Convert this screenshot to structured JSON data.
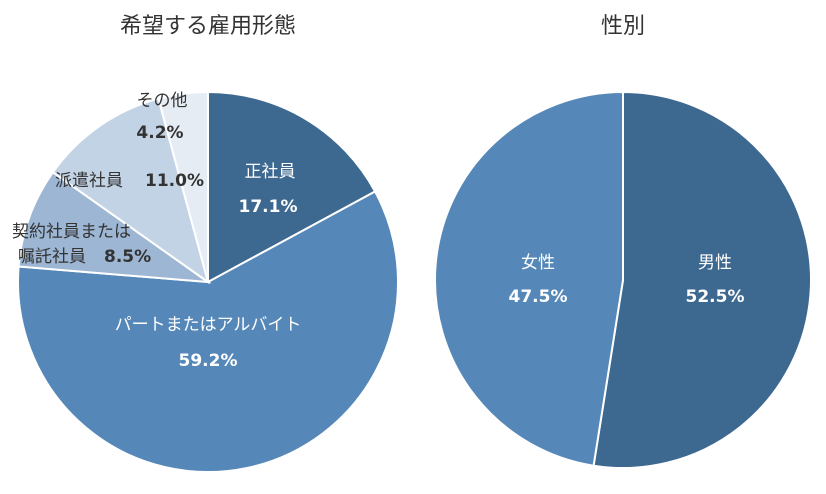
{
  "chart_data": [
    {
      "type": "pie",
      "title": "希望する雇用形態",
      "categories": [
        "正社員",
        "パートまたはアルバイト",
        "契約社員または嘱託社員",
        "派遣社員",
        "その他"
      ],
      "values": [
        17.1,
        59.2,
        8.5,
        11.0,
        4.2
      ],
      "labels": [
        "17.1%",
        "59.2%",
        "8.5%",
        "11.0%",
        "4.2%"
      ],
      "colors": [
        "#3d6890",
        "#5588b8",
        "#9cb6d4",
        "#c3d3e6",
        "#e6ecf4"
      ]
    },
    {
      "type": "pie",
      "title": "性別",
      "categories": [
        "男性",
        "女性"
      ],
      "values": [
        52.5,
        47.5
      ],
      "labels": [
        "52.5%",
        "47.5%"
      ],
      "colors": [
        "#3d6890",
        "#5588b8"
      ]
    }
  ],
  "left": {
    "title": "希望する雇用形態",
    "seishain": "正社員",
    "seishain_pct": "17.1%",
    "part": "パートまたはアルバイト",
    "part_pct": "59.2%",
    "keiyaku1": "契約社員または",
    "keiyaku2": "嘱託社員",
    "keiyaku_pct": "8.5%",
    "haken": "派遣社員",
    "haken_pct": "11.0%",
    "other": "その他",
    "other_pct": "4.2%"
  },
  "right": {
    "title": "性別",
    "male": "男性",
    "male_pct": "52.5%",
    "female": "女性",
    "female_pct": "47.5%"
  }
}
